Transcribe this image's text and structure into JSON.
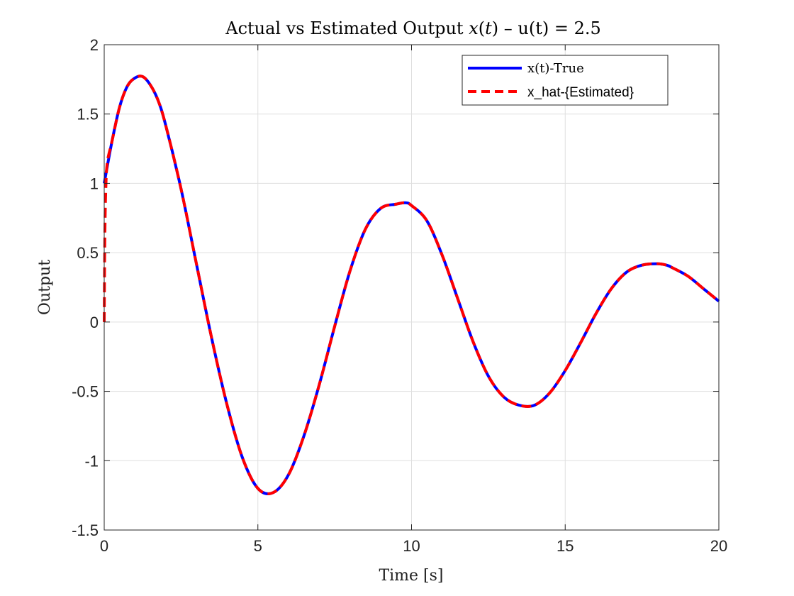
{
  "chart_data": {
    "type": "line",
    "title": "Actual vs Estimated Output x(t) – u(t) = 2.5",
    "title_parts": [
      "Actual vs Estimated Output ",
      "x",
      "(",
      "t",
      ") – u(t) = 2.5"
    ],
    "xlabel": "Time [s]",
    "ylabel": "Output",
    "xlim": [
      0,
      20
    ],
    "ylim": [
      -1.5,
      2
    ],
    "xticks": [
      0,
      5,
      10,
      15,
      20
    ],
    "xtick_labels": [
      "0",
      "5",
      "10",
      "15",
      "20"
    ],
    "yticks": [
      -1.5,
      -1,
      -0.5,
      0,
      0.5,
      1,
      1.5,
      2
    ],
    "ytick_labels": [
      "-1.5",
      "-1",
      "-0.5",
      "0",
      "0.5",
      "1",
      "1.5",
      "2"
    ],
    "grid": true,
    "legend_position": "top-right",
    "series": [
      {
        "name": "x(t)-True",
        "color": "#0000ff",
        "style": "solid",
        "x": [
          0,
          0.25,
          0.5,
          0.75,
          1.0,
          1.25,
          1.5,
          1.75,
          2.0,
          2.5,
          3.0,
          3.5,
          4.0,
          4.5,
          5.0,
          5.5,
          6.0,
          6.5,
          7.0,
          7.5,
          8.0,
          8.5,
          9.0,
          9.5,
          9.8,
          10.0,
          10.5,
          11.0,
          11.5,
          12.0,
          12.5,
          13.0,
          13.5,
          14.0,
          14.5,
          15.0,
          15.5,
          16.0,
          16.5,
          17.0,
          17.5,
          18.0,
          18.3,
          18.5,
          19.0,
          19.5,
          20.0
        ],
        "y": [
          1.0,
          1.3,
          1.55,
          1.7,
          1.76,
          1.77,
          1.71,
          1.6,
          1.42,
          0.96,
          0.42,
          -0.12,
          -0.6,
          -0.98,
          -1.2,
          -1.23,
          -1.1,
          -0.82,
          -0.45,
          -0.03,
          0.37,
          0.67,
          0.82,
          0.85,
          0.86,
          0.84,
          0.73,
          0.48,
          0.17,
          -0.14,
          -0.39,
          -0.54,
          -0.6,
          -0.6,
          -0.51,
          -0.35,
          -0.15,
          0.06,
          0.24,
          0.36,
          0.41,
          0.42,
          0.41,
          0.39,
          0.33,
          0.24,
          0.15
        ]
      },
      {
        "name": "x_hat-{Estimated}",
        "color": "#ff0000",
        "style": "dashed",
        "x": [
          0,
          0.02,
          0.05,
          0.1,
          0.25,
          0.5,
          0.75,
          1.0,
          1.25,
          1.5,
          1.75,
          2.0,
          2.5,
          3.0,
          3.5,
          4.0,
          4.5,
          5.0,
          5.5,
          6.0,
          6.5,
          7.0,
          7.5,
          8.0,
          8.5,
          9.0,
          9.5,
          9.8,
          10.0,
          10.5,
          11.0,
          11.5,
          12.0,
          12.5,
          13.0,
          13.5,
          14.0,
          14.5,
          15.0,
          15.5,
          16.0,
          16.5,
          17.0,
          17.5,
          18.0,
          18.3,
          18.5,
          19.0,
          19.5,
          20.0
        ],
        "y": [
          0.0,
          0.6,
          0.95,
          1.15,
          1.3,
          1.55,
          1.7,
          1.76,
          1.77,
          1.71,
          1.6,
          1.42,
          0.96,
          0.42,
          -0.12,
          -0.6,
          -0.98,
          -1.2,
          -1.23,
          -1.1,
          -0.82,
          -0.45,
          -0.03,
          0.37,
          0.67,
          0.82,
          0.85,
          0.86,
          0.84,
          0.73,
          0.48,
          0.17,
          -0.14,
          -0.39,
          -0.54,
          -0.6,
          -0.6,
          -0.51,
          -0.35,
          -0.15,
          0.06,
          0.24,
          0.36,
          0.41,
          0.42,
          0.41,
          0.39,
          0.33,
          0.24,
          0.15
        ]
      }
    ]
  }
}
